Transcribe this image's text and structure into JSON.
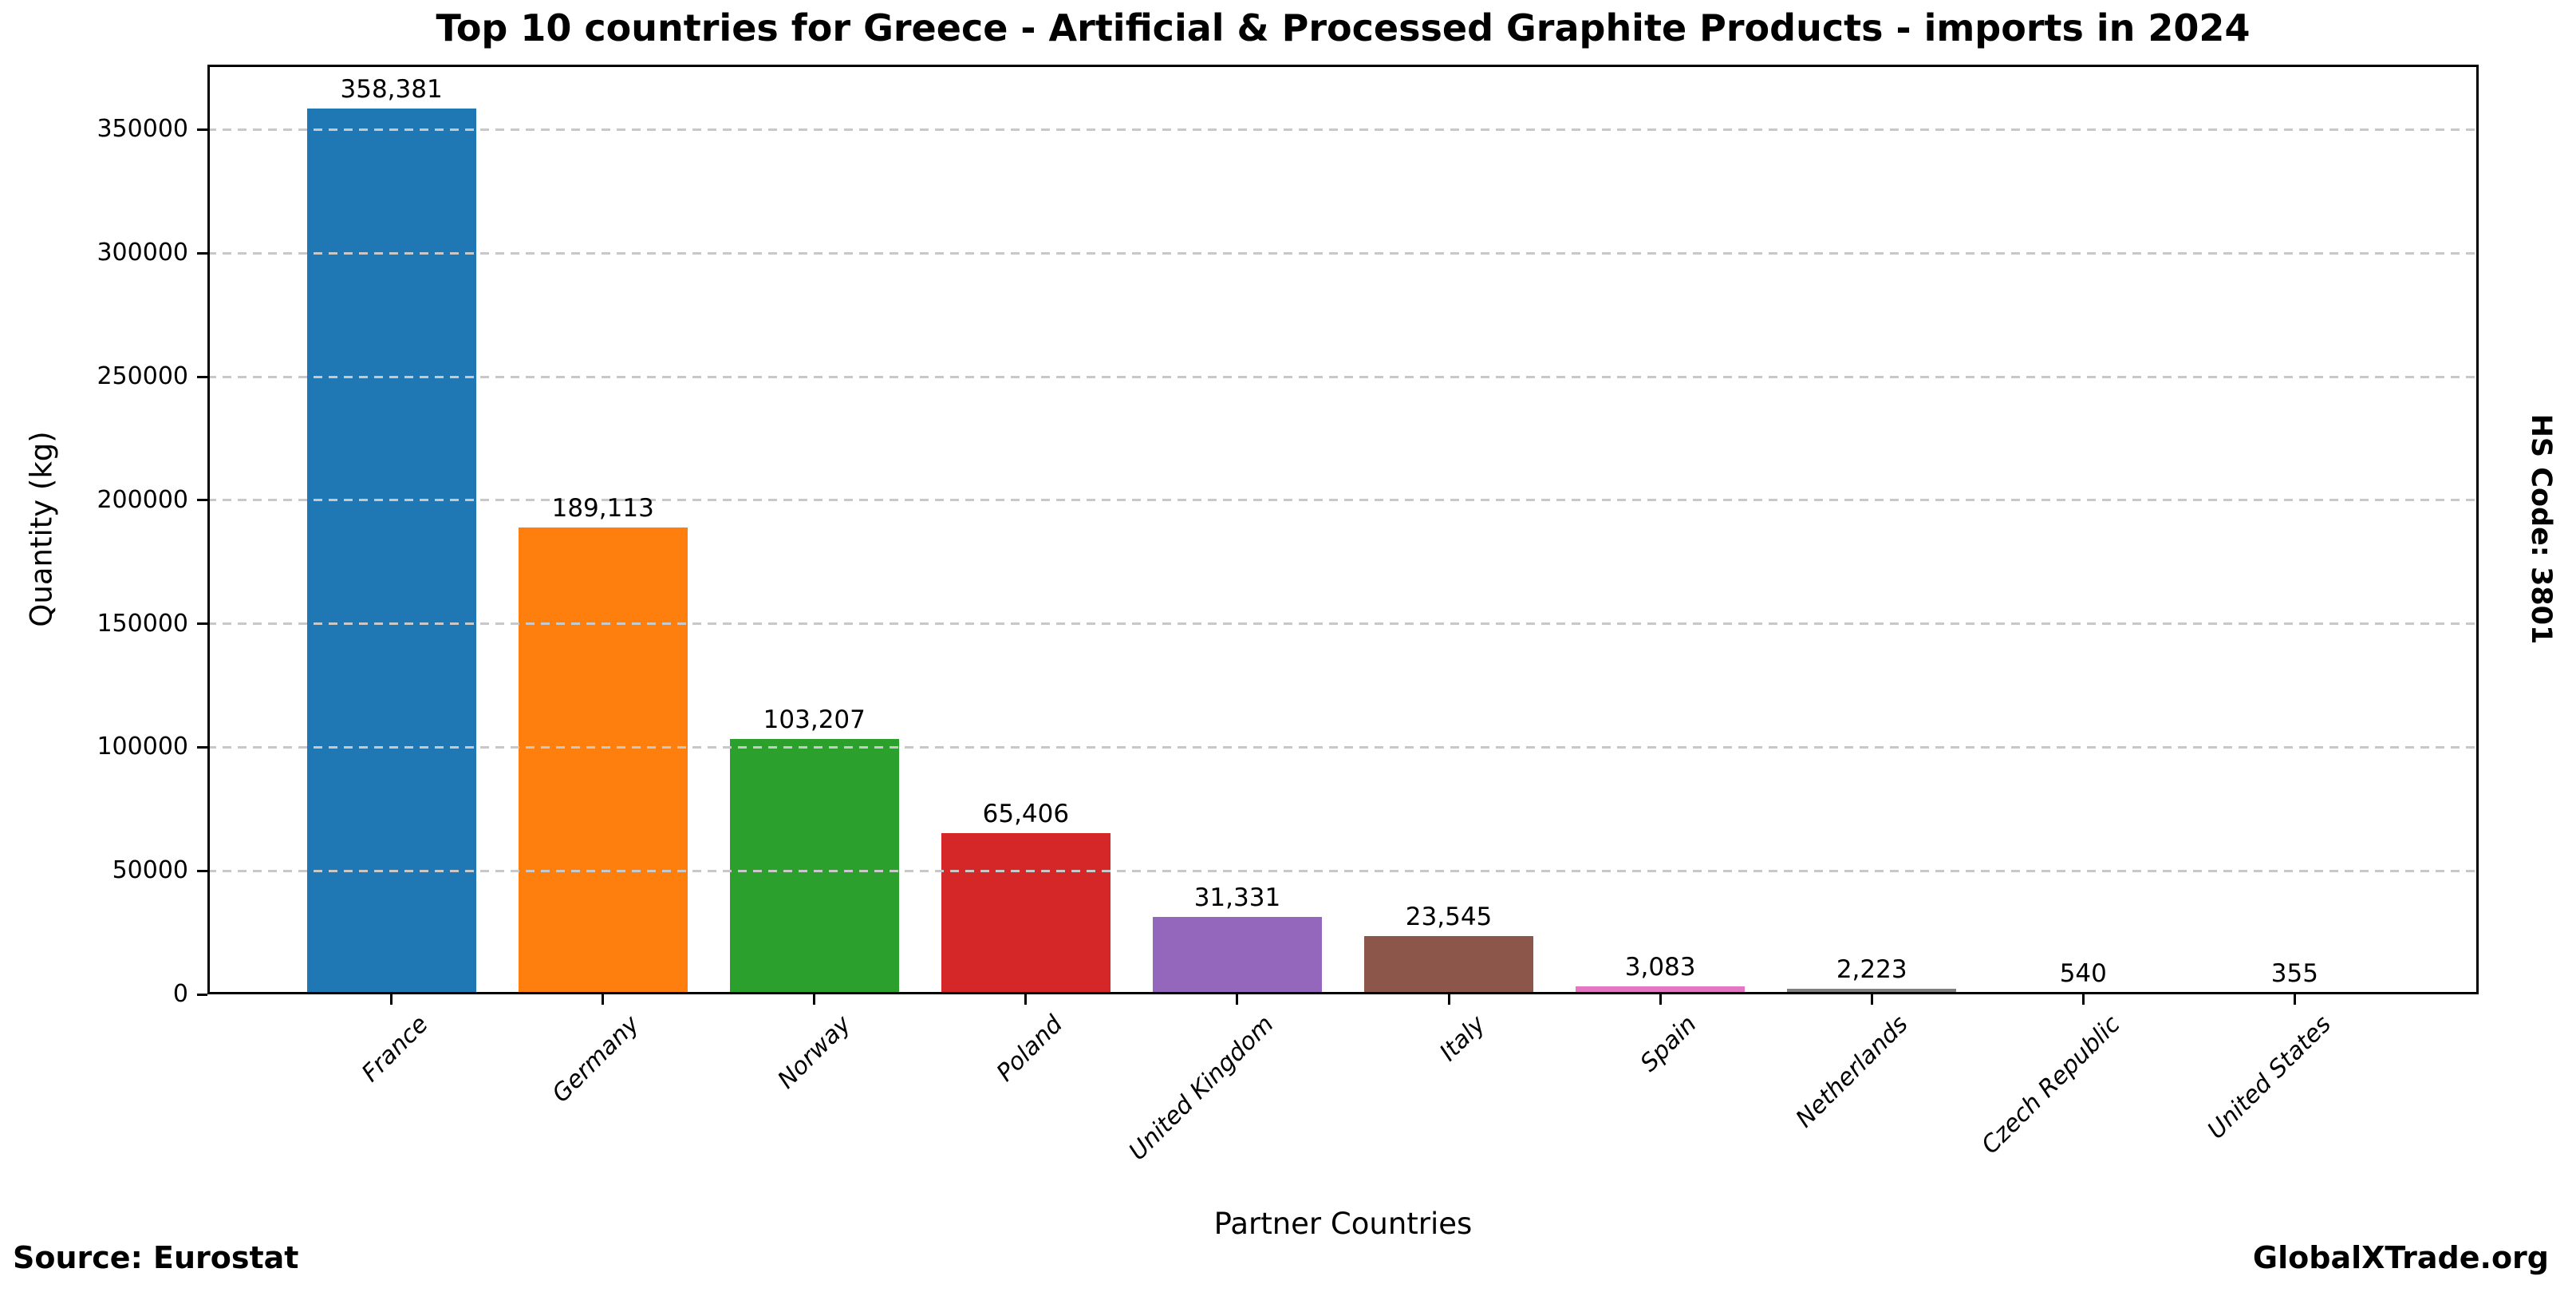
{
  "header": {
    "title": "Top 10 countries for Greece - Artificial & Processed Graphite Products - imports in 2024"
  },
  "annotations": {
    "hs_code": "HS Code: 3801",
    "source": "Source: Eurostat",
    "brand": "GlobalXTrade.org"
  },
  "chart_data": {
    "type": "bar",
    "title": "Top 10 countries for Greece - Artificial & Processed Graphite Products - imports in 2024",
    "xlabel": "Partner Countries",
    "ylabel": "Quantity (kg)",
    "categories": [
      "France",
      "Germany",
      "Norway",
      "Poland",
      "United Kingdom",
      "Italy",
      "Spain",
      "Netherlands",
      "Czech Republic",
      "United States"
    ],
    "values": [
      358381,
      189113,
      103207,
      65406,
      31331,
      23545,
      3083,
      2223,
      540,
      355
    ],
    "value_labels": [
      "358,381",
      "189,113",
      "103,207",
      "65,406",
      "31,331",
      "23,545",
      "3,083",
      "2,223",
      "540",
      "355"
    ],
    "bar_colors": [
      "#1f77b4",
      "#ff7f0e",
      "#2ca02c",
      "#d62728",
      "#9467bd",
      "#8c564b",
      "#e377c2",
      "#7f7f7f",
      "#bcbd22",
      "#17becf"
    ],
    "yticks": [
      0,
      50000,
      100000,
      150000,
      200000,
      250000,
      300000,
      350000
    ],
    "ylim": [
      0,
      376300
    ],
    "grid": "dashed-horizontal-above-bars",
    "legend": "none"
  }
}
